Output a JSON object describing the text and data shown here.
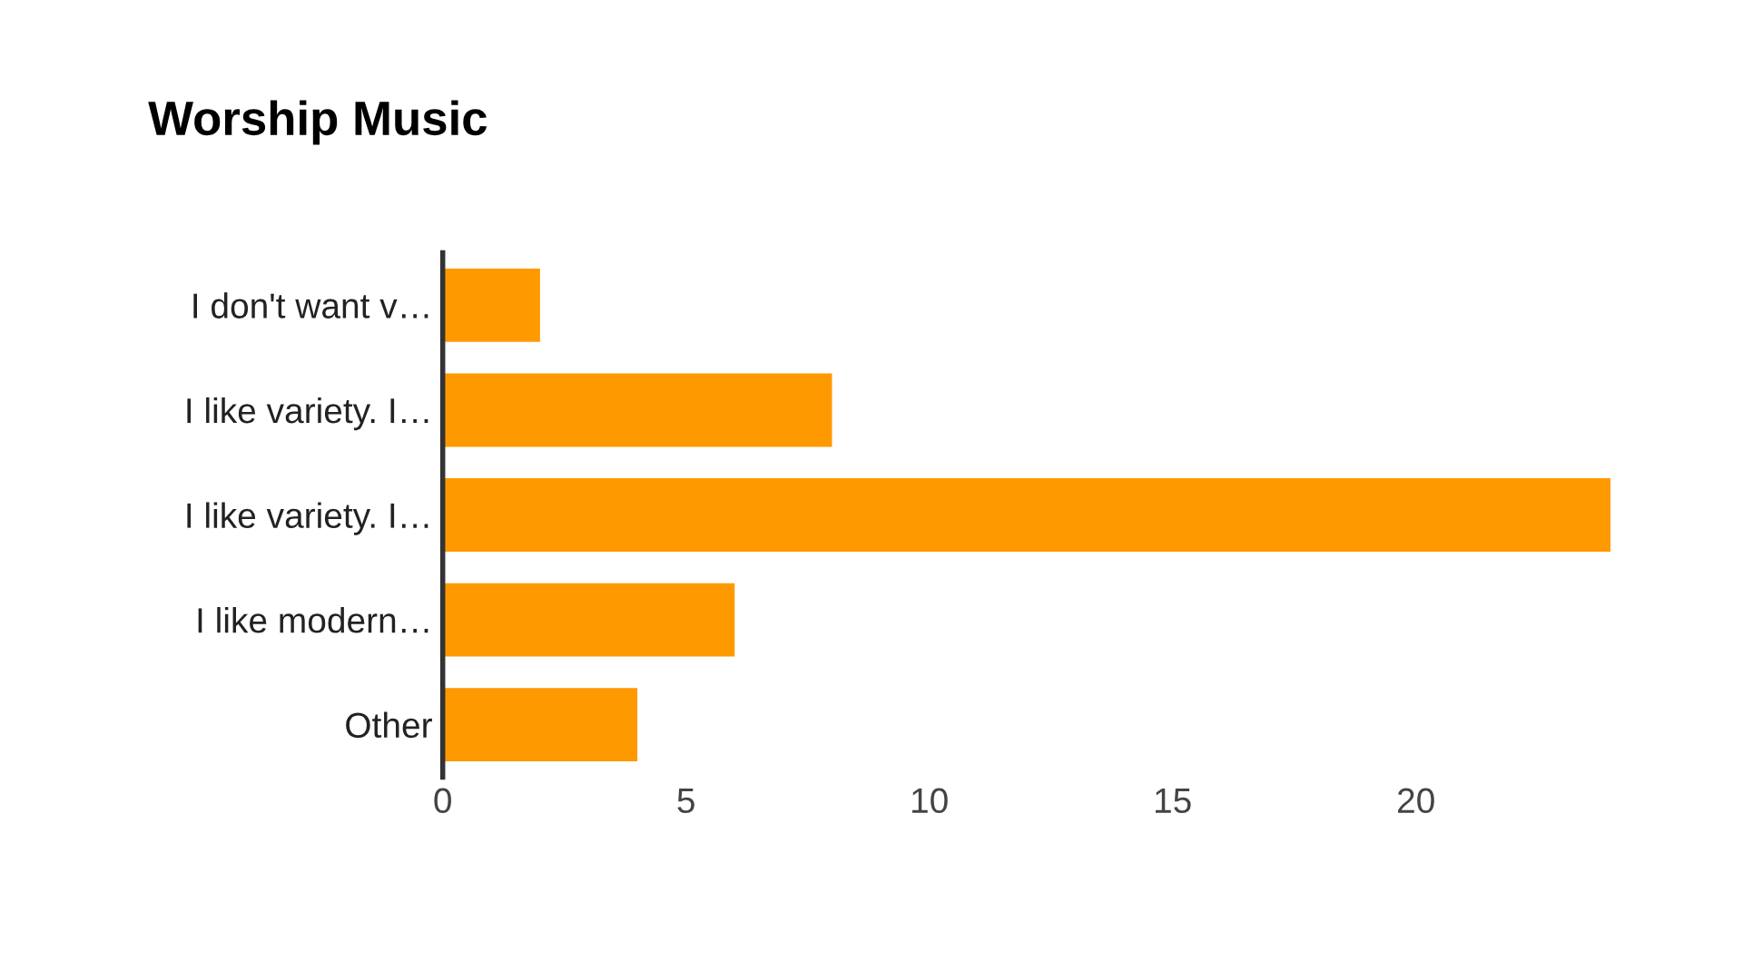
{
  "chart_data": {
    "type": "bar",
    "orientation": "horizontal",
    "title": "Worship Music",
    "categories": [
      "I don't want v…",
      "I like variety. I…",
      "I like variety. I…",
      "I like modern…",
      "Other"
    ],
    "values": [
      2,
      8,
      24,
      6,
      4
    ],
    "color": "#ff9900",
    "xlim": [
      0,
      24
    ],
    "xticks": [
      0,
      5,
      10,
      15,
      20
    ],
    "grid": false,
    "legend": false
  }
}
